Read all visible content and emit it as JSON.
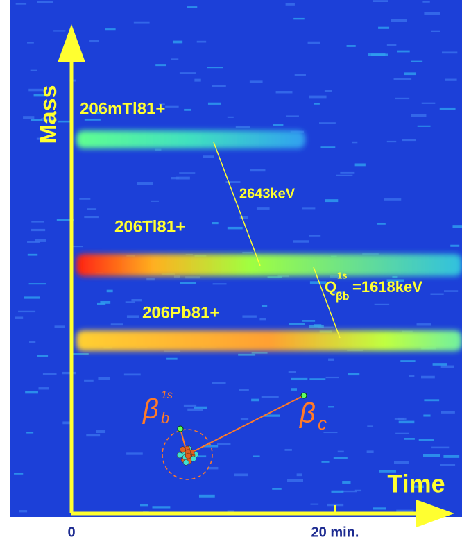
{
  "axes": {
    "y_label": "Mass",
    "x_label": "Time",
    "x_ticks": [
      "0",
      "20 min."
    ]
  },
  "ions": [
    {
      "label": "206mTl81+"
    },
    {
      "label": "206Tl81+"
    },
    {
      "label": "206Pb81+"
    }
  ],
  "transitions": [
    {
      "label": "2643keV"
    },
    {
      "symbol": "Q",
      "superscript": "1s",
      "subscript": "βb",
      "label": "=1618keV"
    }
  ],
  "decays": [
    {
      "symbol": "β",
      "subscript": "b",
      "superscript": "1s"
    },
    {
      "symbol": "β",
      "subscript": "c"
    }
  ]
}
